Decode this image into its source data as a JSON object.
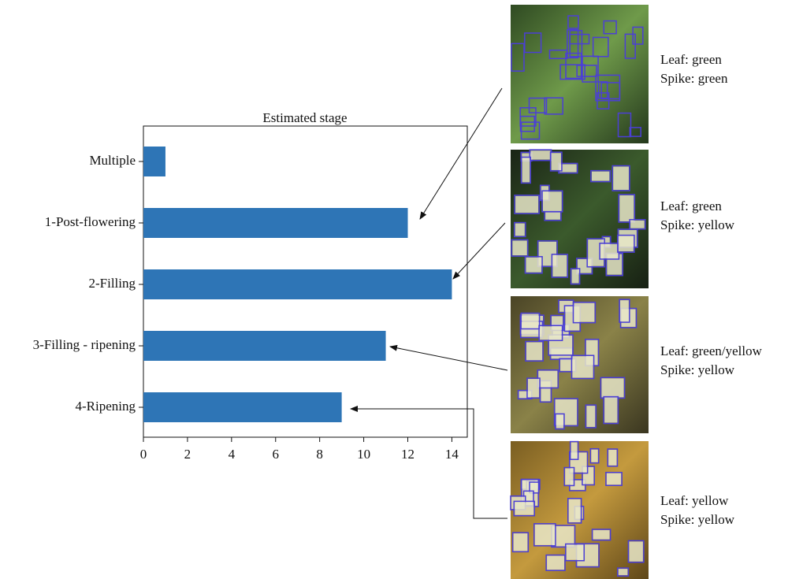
{
  "chart_data": {
    "type": "bar",
    "orientation": "horizontal",
    "title": "Estimated stage",
    "categories": [
      "Multiple",
      "1-Post-flowering",
      "2-Filling",
      "3-Filling - ripening",
      "4-Ripening"
    ],
    "values": [
      1,
      12,
      14,
      11,
      9
    ],
    "color": "#2e75b6",
    "xlim": [
      0,
      14.7
    ],
    "xticks": [
      0,
      2,
      4,
      6,
      8,
      10,
      12,
      14
    ],
    "grid": false,
    "annotations": [
      {
        "leaf": "Leaf: green",
        "spike": "Spike: green"
      },
      {
        "leaf": "Leaf: green",
        "spike": "Spike: yellow"
      },
      {
        "leaf": "Leaf: green/yellow",
        "spike": "Spike: yellow"
      },
      {
        "leaf": "Leaf: yellow",
        "spike": "Spike: yellow"
      }
    ]
  }
}
